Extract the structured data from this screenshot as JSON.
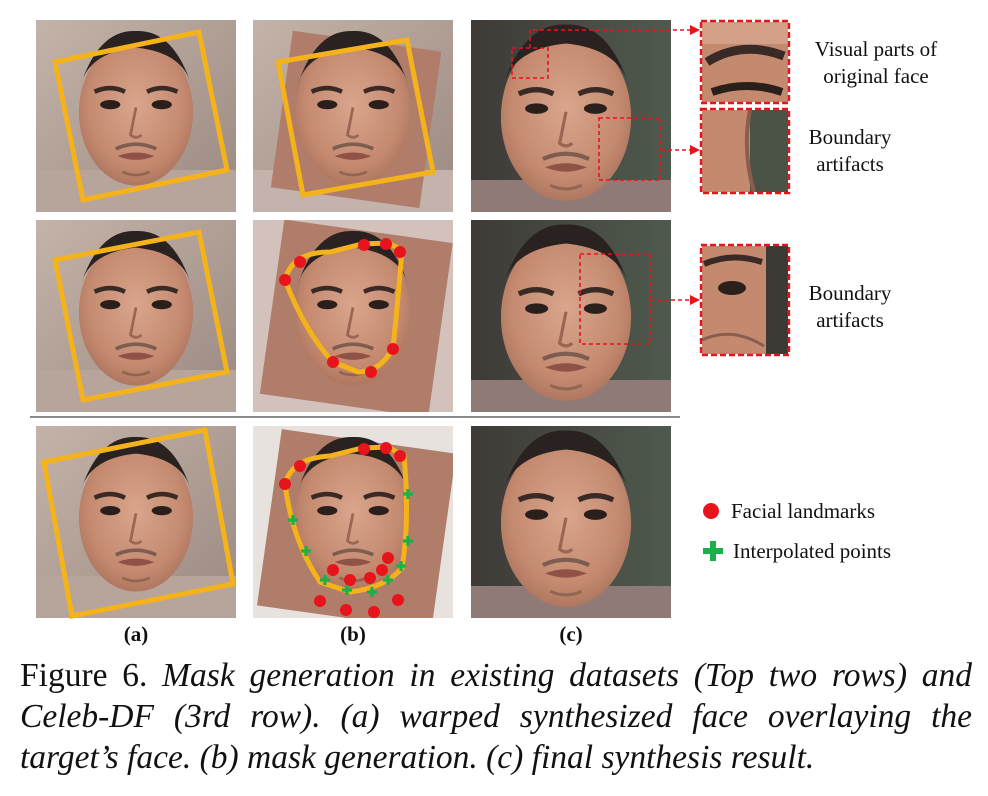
{
  "colors": {
    "box": "#f4b21b",
    "landmark": "#e8141c",
    "interpolated": "#1ab04a",
    "callout": "#e8141c"
  },
  "annotations": {
    "visual_parts": "Visual parts of original face",
    "boundary_artifacts_1": "Boundary artifacts",
    "boundary_artifacts_2": "Boundary artifacts"
  },
  "legend": {
    "landmarks": "Facial landmarks",
    "interpolated": "Interpolated points"
  },
  "column_labels": {
    "a": "(a)",
    "b": "(b)",
    "c": "(c)"
  },
  "caption": {
    "lead": "Figure 6.",
    "body": "Mask generation in existing datasets (Top two rows) and Celeb-DF (3rd row). (a) warped synthesized face overlaying the target’s face. (b) mask generation. (c) final synthesis result."
  }
}
